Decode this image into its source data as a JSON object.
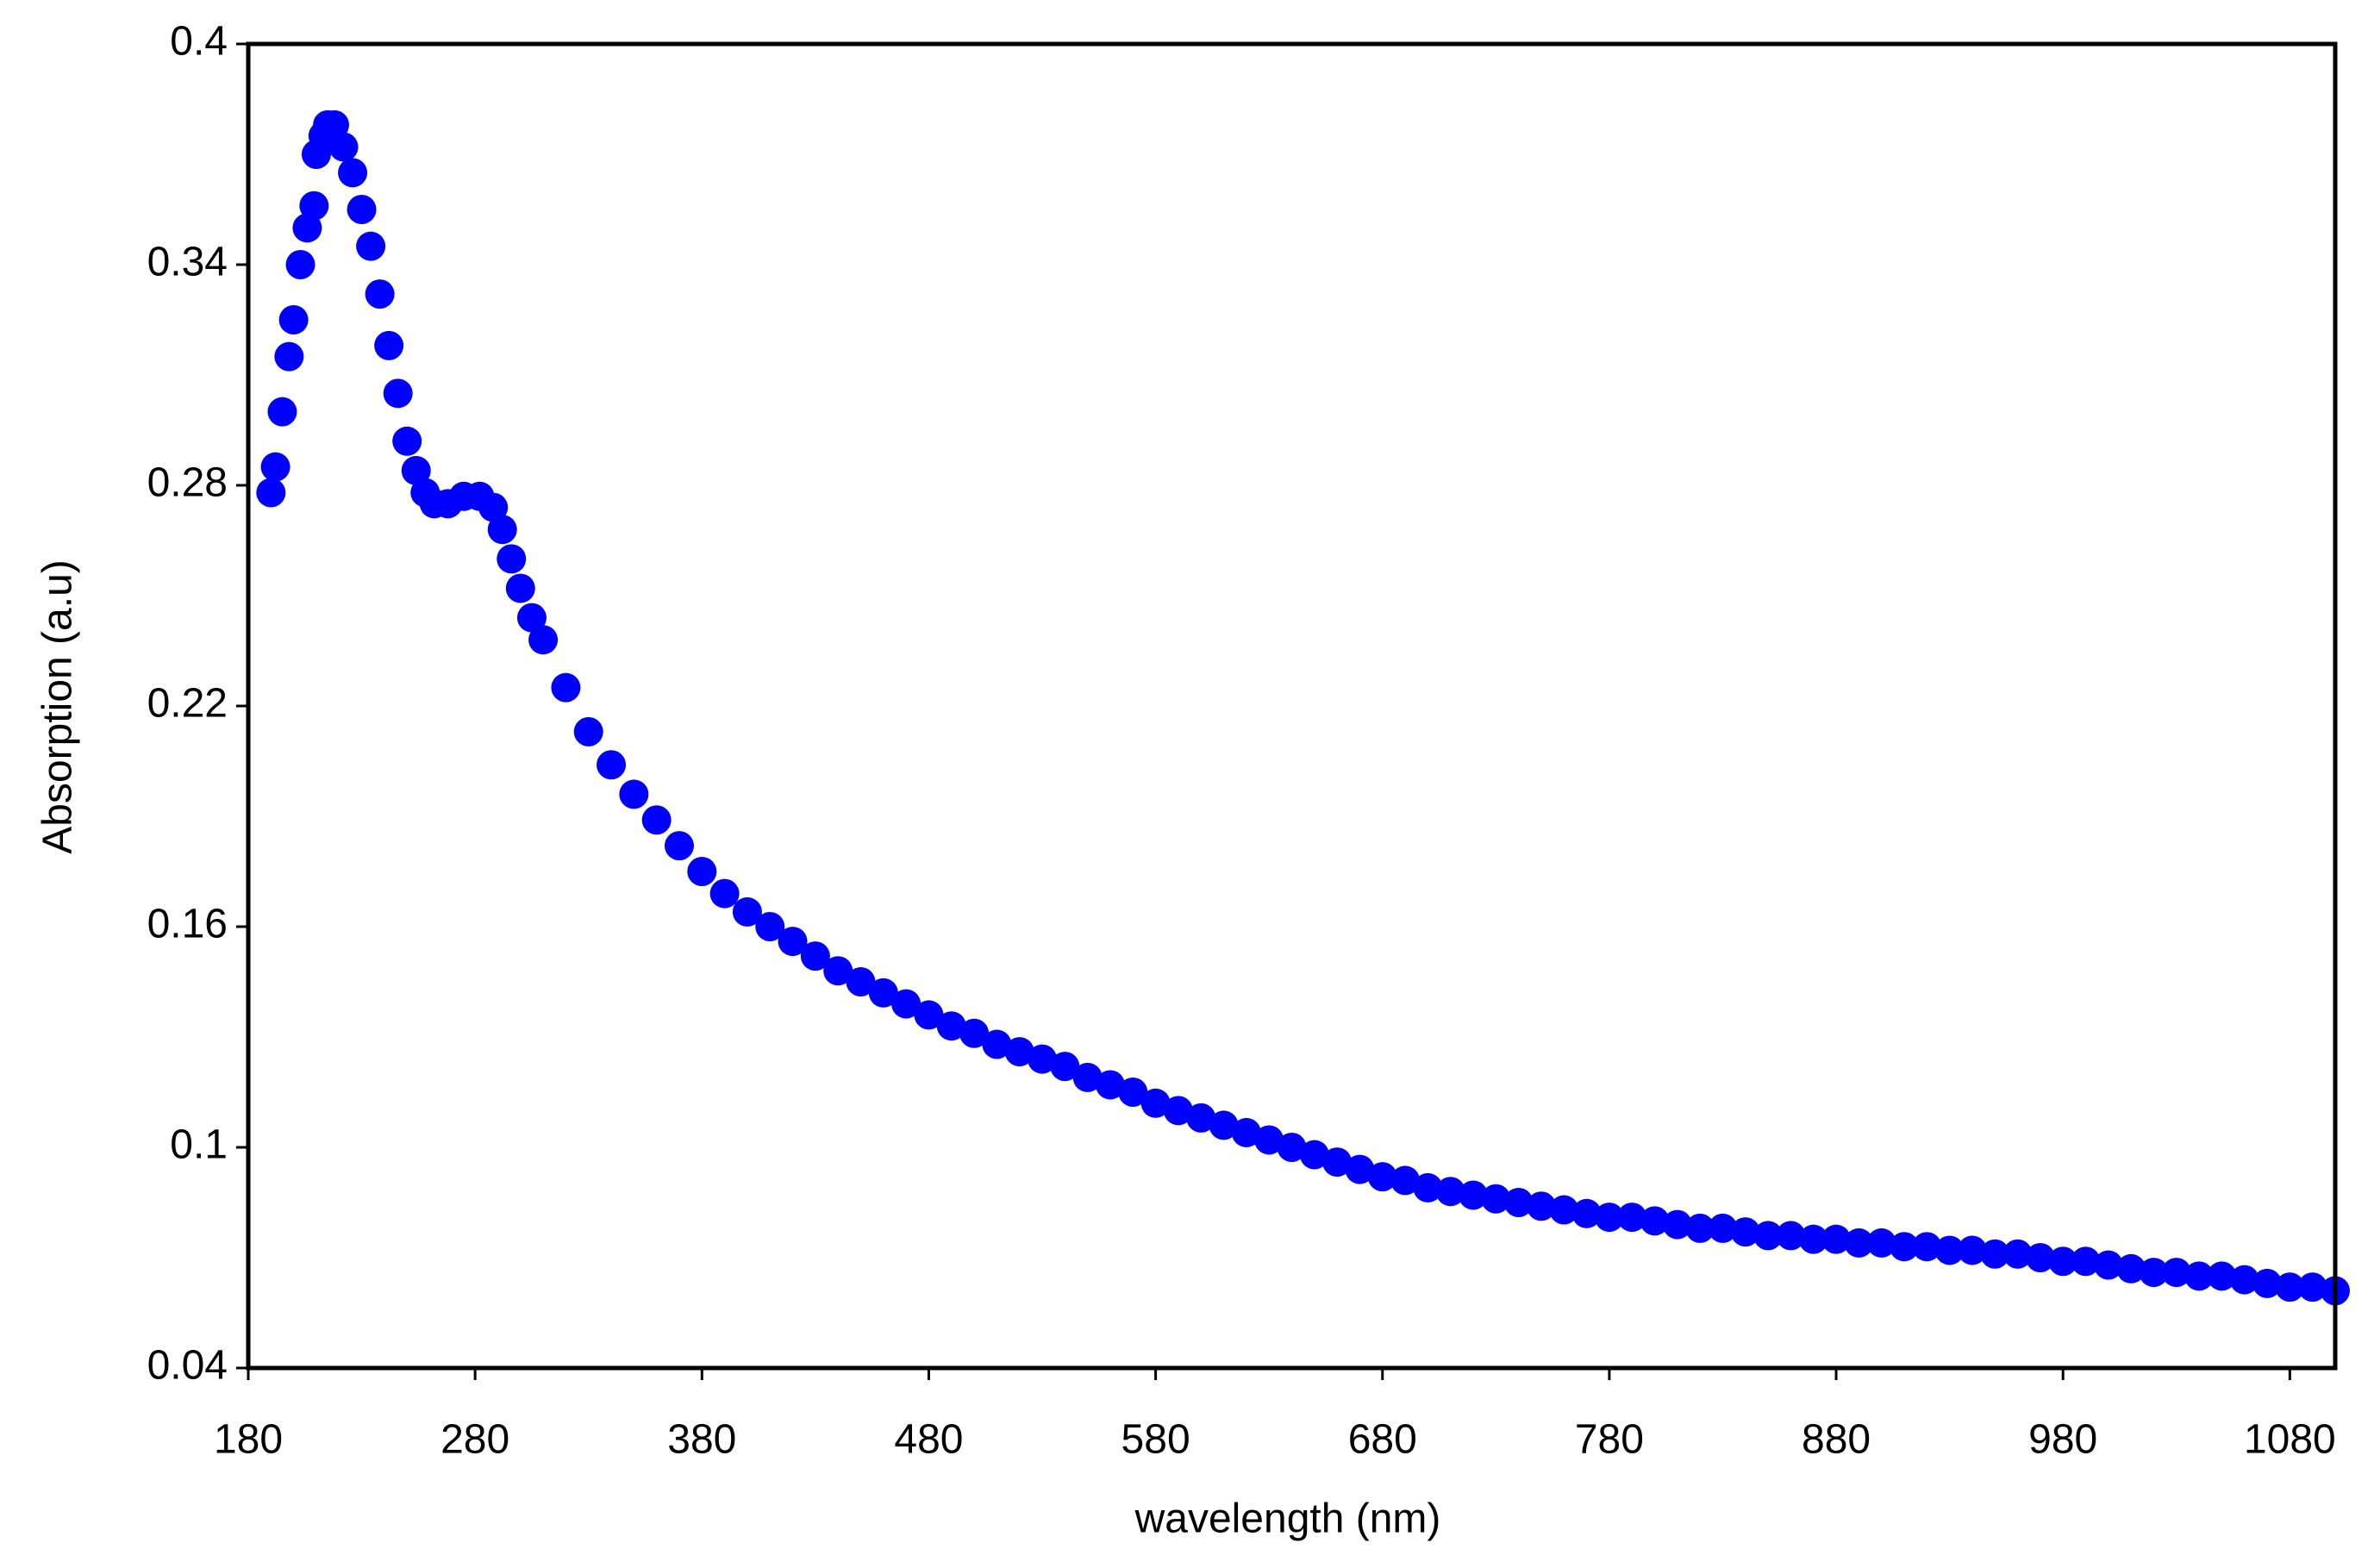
{
  "chart_data": {
    "type": "scatter",
    "xlabel": "wavelength (nm)",
    "ylabel": "Absorption (a.u)",
    "xlim": [
      180,
      1100
    ],
    "xticks": [
      180,
      280,
      380,
      480,
      580,
      680,
      780,
      880,
      980,
      1080
    ],
    "ylim": [
      0.04,
      0.4
    ],
    "yticks": [
      0.04,
      0.1,
      0.16,
      0.22,
      0.28,
      0.34,
      0.4
    ],
    "grid": false,
    "series": [
      {
        "name": "",
        "color": "#0000ff",
        "x": [
          190,
          192,
          195,
          198,
          200,
          203,
          206,
          209,
          210,
          213,
          215,
          218,
          222,
          226,
          230,
          234,
          238,
          242,
          246,
          250,
          254,
          258,
          262,
          268,
          275,
          282,
          288,
          292,
          296,
          300,
          305,
          310,
          320,
          330,
          340,
          350,
          360,
          370,
          380,
          390,
          400,
          410,
          420,
          430,
          440,
          450,
          460,
          470,
          480,
          490,
          500,
          510,
          520,
          530,
          540,
          550,
          560,
          570,
          580,
          590,
          600,
          610,
          620,
          630,
          640,
          650,
          660,
          670,
          680,
          690,
          700,
          710,
          720,
          730,
          740,
          750,
          760,
          770,
          780,
          790,
          800,
          810,
          820,
          830,
          840,
          850,
          860,
          870,
          880,
          890,
          900,
          910,
          920,
          930,
          940,
          950,
          960,
          970,
          980,
          990,
          1000,
          1010,
          1020,
          1030,
          1040,
          1050,
          1060,
          1070,
          1080,
          1090,
          1100
        ],
        "values": [
          0.278,
          0.285,
          0.3,
          0.315,
          0.325,
          0.34,
          0.35,
          0.356,
          0.37,
          0.375,
          0.378,
          0.378,
          0.372,
          0.365,
          0.355,
          0.345,
          0.332,
          0.318,
          0.305,
          0.292,
          0.284,
          0.278,
          0.275,
          0.275,
          0.277,
          0.277,
          0.274,
          0.268,
          0.26,
          0.252,
          0.244,
          0.238,
          0.225,
          0.213,
          0.204,
          0.196,
          0.189,
          0.182,
          0.175,
          0.169,
          0.164,
          0.16,
          0.156,
          0.152,
          0.148,
          0.145,
          0.142,
          0.139,
          0.136,
          0.133,
          0.131,
          0.128,
          0.126,
          0.124,
          0.122,
          0.119,
          0.117,
          0.115,
          0.112,
          0.11,
          0.108,
          0.106,
          0.104,
          0.102,
          0.1,
          0.098,
          0.096,
          0.094,
          0.092,
          0.091,
          0.089,
          0.088,
          0.087,
          0.086,
          0.085,
          0.084,
          0.083,
          0.082,
          0.081,
          0.081,
          0.08,
          0.079,
          0.078,
          0.078,
          0.077,
          0.076,
          0.076,
          0.075,
          0.075,
          0.074,
          0.074,
          0.073,
          0.073,
          0.072,
          0.072,
          0.071,
          0.071,
          0.07,
          0.069,
          0.069,
          0.068,
          0.067,
          0.066,
          0.066,
          0.065,
          0.065,
          0.064,
          0.063,
          0.062,
          0.062,
          0.061
        ]
      }
    ]
  }
}
